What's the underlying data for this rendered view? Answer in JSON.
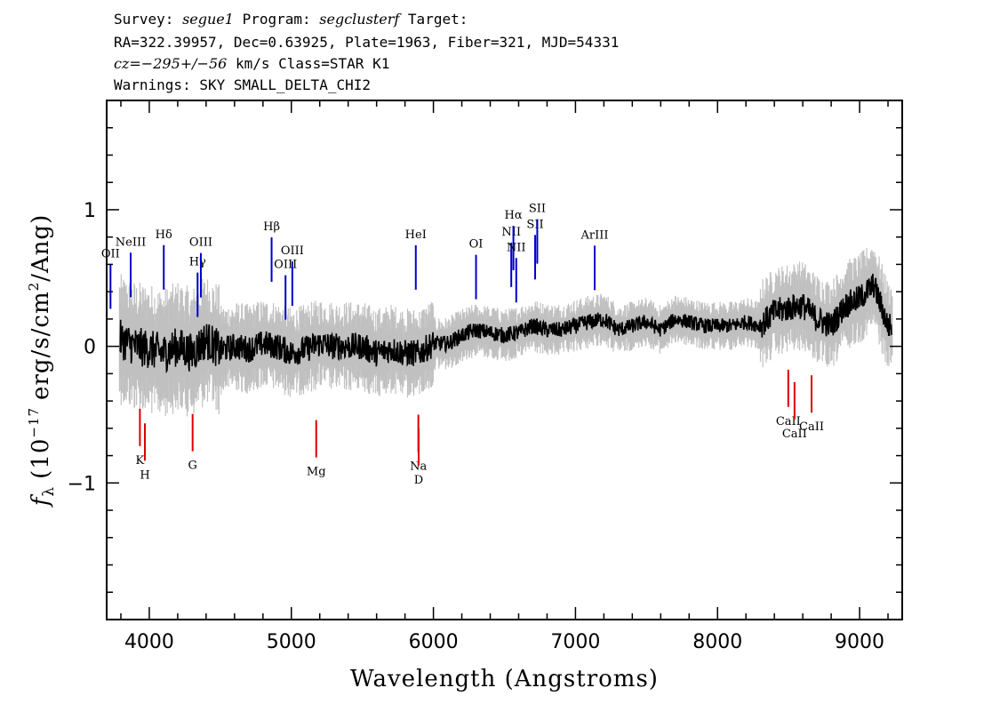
{
  "header": {
    "survey_label": "Survey:",
    "survey_value": "segue1",
    "program_label": "Program:",
    "program_value": "segclusterf",
    "target_label": "Target:",
    "line2": "RA=322.39957, Dec=0.63925, Plate=1963, Fiber=321, MJD=54331",
    "cz_label": "cz=",
    "cz_value": "−295+/−56",
    "cz_rest": " km/s Class=STAR K1",
    "warnings": "Warnings: SKY SMALL_DELTA_CHI2"
  },
  "chart_data": {
    "type": "line",
    "title": "",
    "xlabel": "Wavelength (Angstroms)",
    "ylabel_parts": {
      "f": "f",
      "sub": "λ",
      "pre": "(10",
      "exp": "−17",
      "mid": "erg/s/cm",
      "exp2": "2",
      "post": "/Ang)"
    },
    "xlim": [
      3700,
      9300
    ],
    "ylim": [
      -2.0,
      1.8
    ],
    "xticks": [
      4000,
      5000,
      6000,
      7000,
      8000,
      9000
    ],
    "xtick_labels": [
      "4000",
      "5000",
      "6000",
      "7000",
      "8000",
      "9000"
    ],
    "yticks": [
      -1,
      0,
      1
    ],
    "ytick_labels": [
      "−1",
      "0",
      "1"
    ],
    "series": [
      {
        "name": "",
        "color": "#000000",
        "x": [
          3800,
          3900,
          4000,
          4100,
          4200,
          4300,
          4400,
          4500,
          4600,
          4700,
          4800,
          4900,
          5000,
          5100,
          5200,
          5300,
          5400,
          5500,
          5600,
          5700,
          5800,
          5900,
          6000,
          6100,
          6200,
          6300,
          6400,
          6500,
          6600,
          6700,
          6800,
          6900,
          7000,
          7100,
          7200,
          7300,
          7400,
          7500,
          7600,
          7700,
          7800,
          7900,
          8000,
          8100,
          8200,
          8300,
          8400,
          8500,
          8600,
          8700,
          8800,
          8900,
          9000,
          9100,
          9200
        ],
        "y": [
          0.05,
          0.0,
          -0.02,
          -0.05,
          0.0,
          -0.05,
          0.05,
          -0.03,
          0.0,
          -0.02,
          0.02,
          0.0,
          -0.05,
          -0.02,
          0.02,
          0.0,
          0.0,
          0.0,
          -0.05,
          -0.02,
          -0.05,
          -0.05,
          0.02,
          0.02,
          0.08,
          0.12,
          0.1,
          0.08,
          0.1,
          0.15,
          0.12,
          0.12,
          0.15,
          0.18,
          0.2,
          0.12,
          0.15,
          0.18,
          0.12,
          0.2,
          0.18,
          0.15,
          0.15,
          0.15,
          0.18,
          0.15,
          0.25,
          0.28,
          0.3,
          0.2,
          0.15,
          0.3,
          0.35,
          0.45,
          0.15
        ]
      }
    ],
    "error_band_color": "#c0c0c0",
    "spectral_lines": {
      "emission_color": "#0000cc",
      "absorption_color": "#dd0000",
      "emission": [
        {
          "label": "OII",
          "wavelength": 3727
        },
        {
          "label": "NeIII",
          "wavelength": 3869
        },
        {
          "label": "Hδ",
          "wavelength": 4102
        },
        {
          "label": "Hγ",
          "wavelength": 4340
        },
        {
          "label": "OIII",
          "wavelength": 4363
        },
        {
          "label": "Hβ",
          "wavelength": 4861
        },
        {
          "label": "OIII",
          "wavelength": 4959
        },
        {
          "label": "OIII",
          "wavelength": 5007
        },
        {
          "label": "HeI",
          "wavelength": 5876
        },
        {
          "label": "OI",
          "wavelength": 6300
        },
        {
          "label": "NII",
          "wavelength": 6548
        },
        {
          "label": "Hα",
          "wavelength": 6563
        },
        {
          "label": "NII",
          "wavelength": 6583
        },
        {
          "label": "SII",
          "wavelength": 6716
        },
        {
          "label": "SII",
          "wavelength": 6731
        },
        {
          "label": "ArIII",
          "wavelength": 7135
        }
      ],
      "absorption": [
        {
          "label": "K",
          "wavelength": 3934
        },
        {
          "label": "H",
          "wavelength": 3969
        },
        {
          "label": "G",
          "wavelength": 4305
        },
        {
          "label": "Mg",
          "wavelength": 5175
        },
        {
          "label": "Na",
          "wavelength": 5894
        },
        {
          "label": "D",
          "wavelength": 5896
        },
        {
          "label": "CaII",
          "wavelength": 8498
        },
        {
          "label": "CaII",
          "wavelength": 8542
        },
        {
          "label": "CaII",
          "wavelength": 8662
        }
      ]
    }
  }
}
